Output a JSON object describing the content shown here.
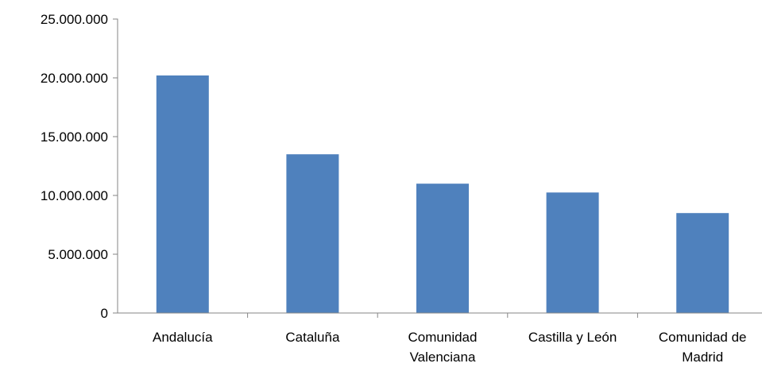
{
  "colors": {
    "bar": "#4F81BD",
    "axis": "#868686",
    "text": "#000000",
    "background": "#FFFFFF"
  },
  "chart_data": {
    "type": "bar",
    "title": "",
    "xlabel": "",
    "ylabel": "",
    "categories": [
      [
        "Andalucía"
      ],
      [
        "Cataluña"
      ],
      [
        "Comunidad",
        "Valenciana"
      ],
      [
        "Castilla y León"
      ],
      [
        "Comunidad de",
        "Madrid"
      ]
    ],
    "values": [
      20200000,
      13500000,
      11000000,
      10250000,
      8500000
    ],
    "ylim": [
      0,
      25000000
    ],
    "yticks": [
      0,
      5000000,
      10000000,
      15000000,
      20000000,
      25000000
    ],
    "ytick_labels": [
      "0",
      "5.000.000",
      "10.000.000",
      "15.000.000",
      "20.000.000",
      "25.000.000"
    ],
    "grid": false,
    "legend": "none"
  }
}
